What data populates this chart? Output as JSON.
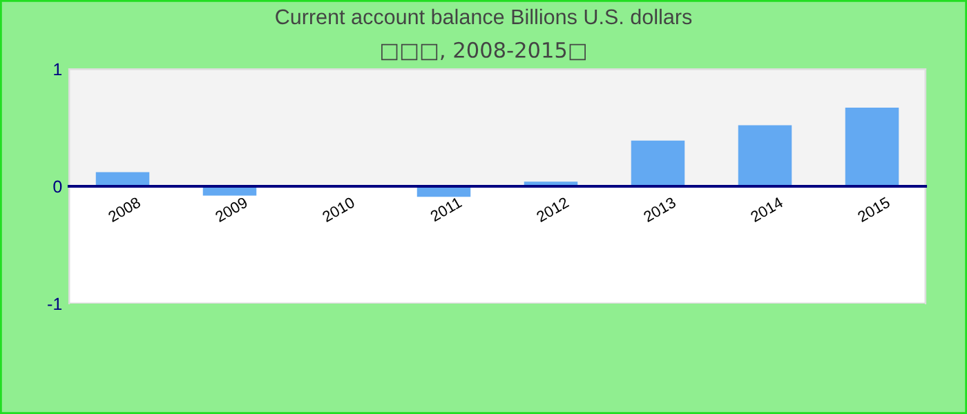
{
  "chart_data": {
    "type": "bar",
    "title": "Current account balance Billions U.S. dollars",
    "subtitle": "□□□, 2008-2015□",
    "categories": [
      "2008",
      "2009",
      "2010",
      "2011",
      "2012",
      "2013",
      "2014",
      "2015"
    ],
    "values": [
      0.12,
      -0.08,
      0,
      -0.09,
      0.04,
      0.39,
      0.52,
      0.67
    ],
    "color": "#63a9f2",
    "ylim": [
      -1,
      1
    ],
    "yticks": [
      -1,
      0,
      1
    ],
    "bands": [
      {
        "axis": "y",
        "from": 0,
        "to": 1,
        "color": "#f3f3f3"
      }
    ],
    "grid": false,
    "legend": false
  }
}
